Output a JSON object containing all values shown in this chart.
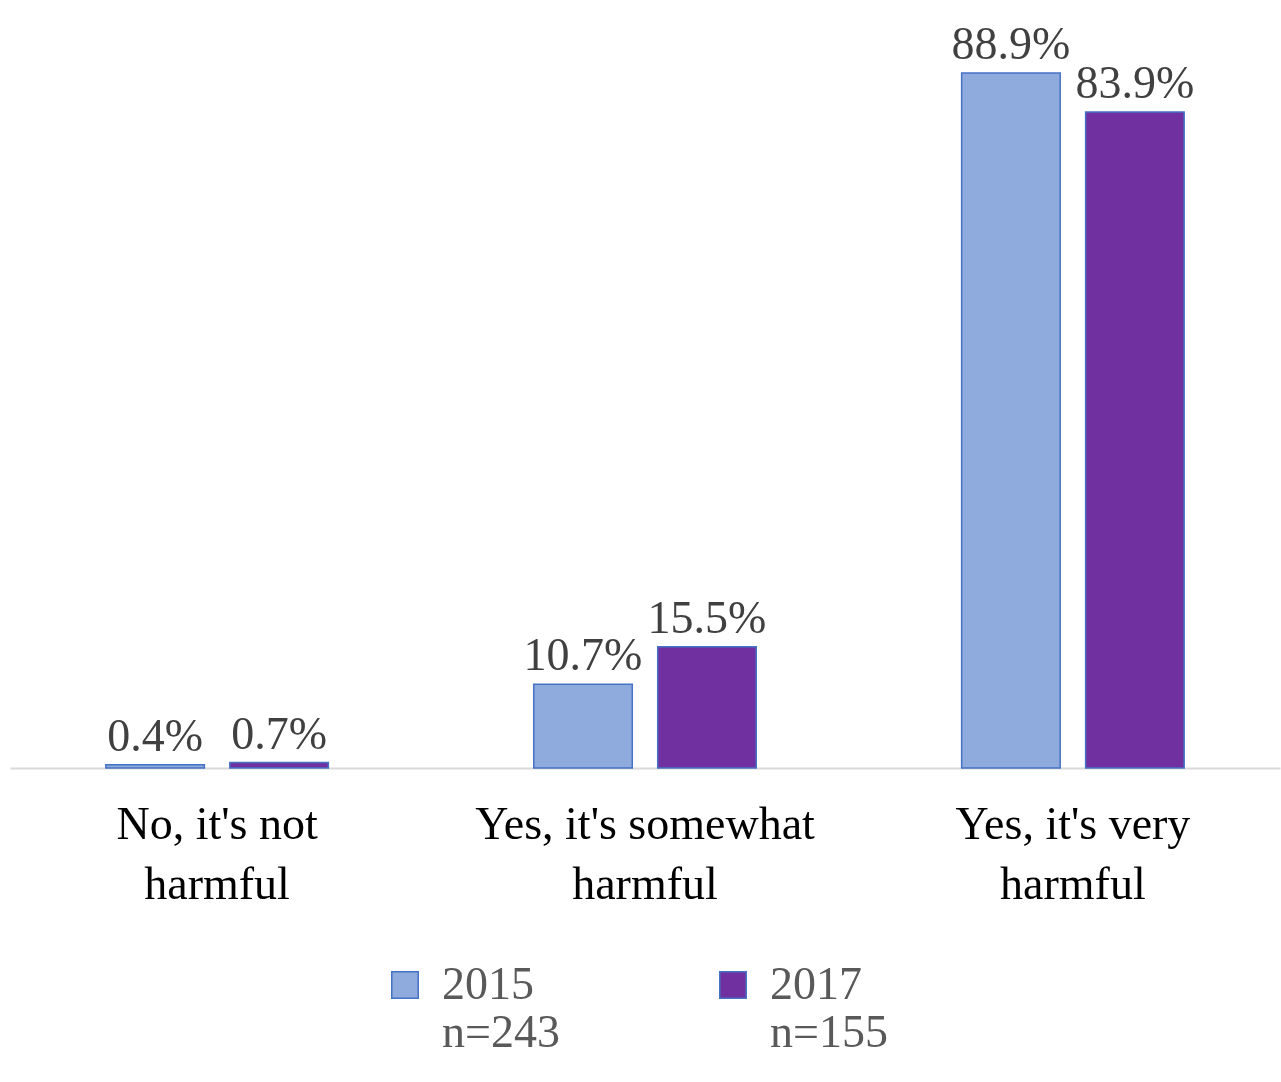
{
  "chart_data": {
    "type": "bar",
    "categories": [
      "No, it's not\nharmful",
      "Yes, it's somewhat\nharmful",
      "Yes, it's very\nharmful"
    ],
    "series": [
      {
        "name": "2015\nn=243",
        "color": "#8faadc",
        "values": [
          0.4,
          10.7,
          88.9
        ],
        "value_labels": [
          "0.4%",
          "10.7%",
          "88.9%"
        ]
      },
      {
        "name": "2017\nn=155",
        "color": "#7030a0",
        "values": [
          0.7,
          15.5,
          83.9
        ],
        "value_labels": [
          "0.7%",
          "15.5%",
          "83.9%"
        ]
      }
    ],
    "legend": "bottom",
    "grid": false
  }
}
